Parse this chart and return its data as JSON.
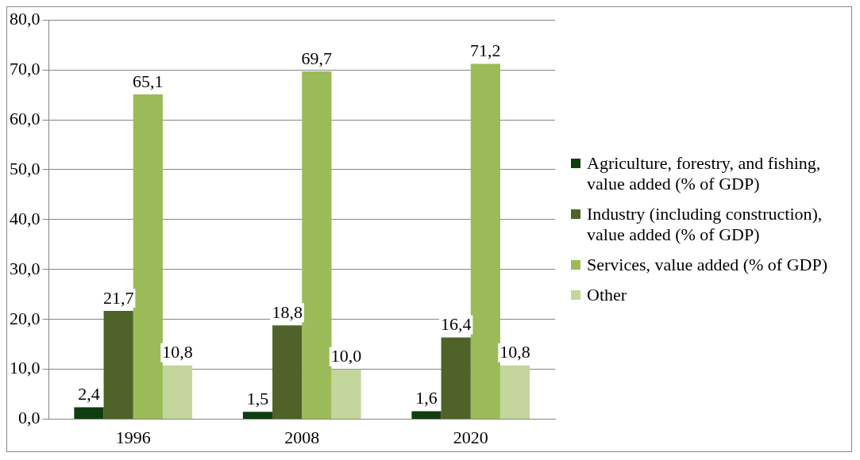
{
  "chart_data": {
    "type": "bar",
    "categories": [
      "1996",
      "2008",
      "2020"
    ],
    "series": [
      {
        "name": "Agriculture, forestry, and fishing, value added (% of GDP)",
        "color": "#0f3d0f",
        "values": [
          2.4,
          1.5,
          1.6
        ],
        "value_labels": [
          "2,4",
          "1,5",
          "1,6"
        ]
      },
      {
        "name": "Industry (including construction), value added (% of GDP)",
        "color": "#4f6228",
        "values": [
          21.7,
          18.8,
          16.4
        ],
        "value_labels": [
          "21,7",
          "18,8",
          "16,4"
        ]
      },
      {
        "name": "Services, value added (% of GDP)",
        "color": "#9bbb59",
        "values": [
          65.1,
          69.7,
          71.2
        ],
        "value_labels": [
          "65,1",
          "69,7",
          "71,2"
        ]
      },
      {
        "name": "Other",
        "color": "#c3d69b",
        "values": [
          10.8,
          10.0,
          10.8
        ],
        "value_labels": [
          "10,8",
          "10,0",
          "10,8"
        ]
      }
    ],
    "ylim": [
      0,
      80
    ],
    "yticks": [
      {
        "value": 0,
        "label": "0,0"
      },
      {
        "value": 10,
        "label": "10,0"
      },
      {
        "value": 20,
        "label": "20,0"
      },
      {
        "value": 30,
        "label": "30,0"
      },
      {
        "value": 40,
        "label": "40,0"
      },
      {
        "value": 50,
        "label": "50,0"
      },
      {
        "value": 60,
        "label": "60,0"
      },
      {
        "value": 70,
        "label": "70,0"
      },
      {
        "value": 80,
        "label": "80,0"
      }
    ],
    "grid": "y",
    "legend": "right"
  }
}
